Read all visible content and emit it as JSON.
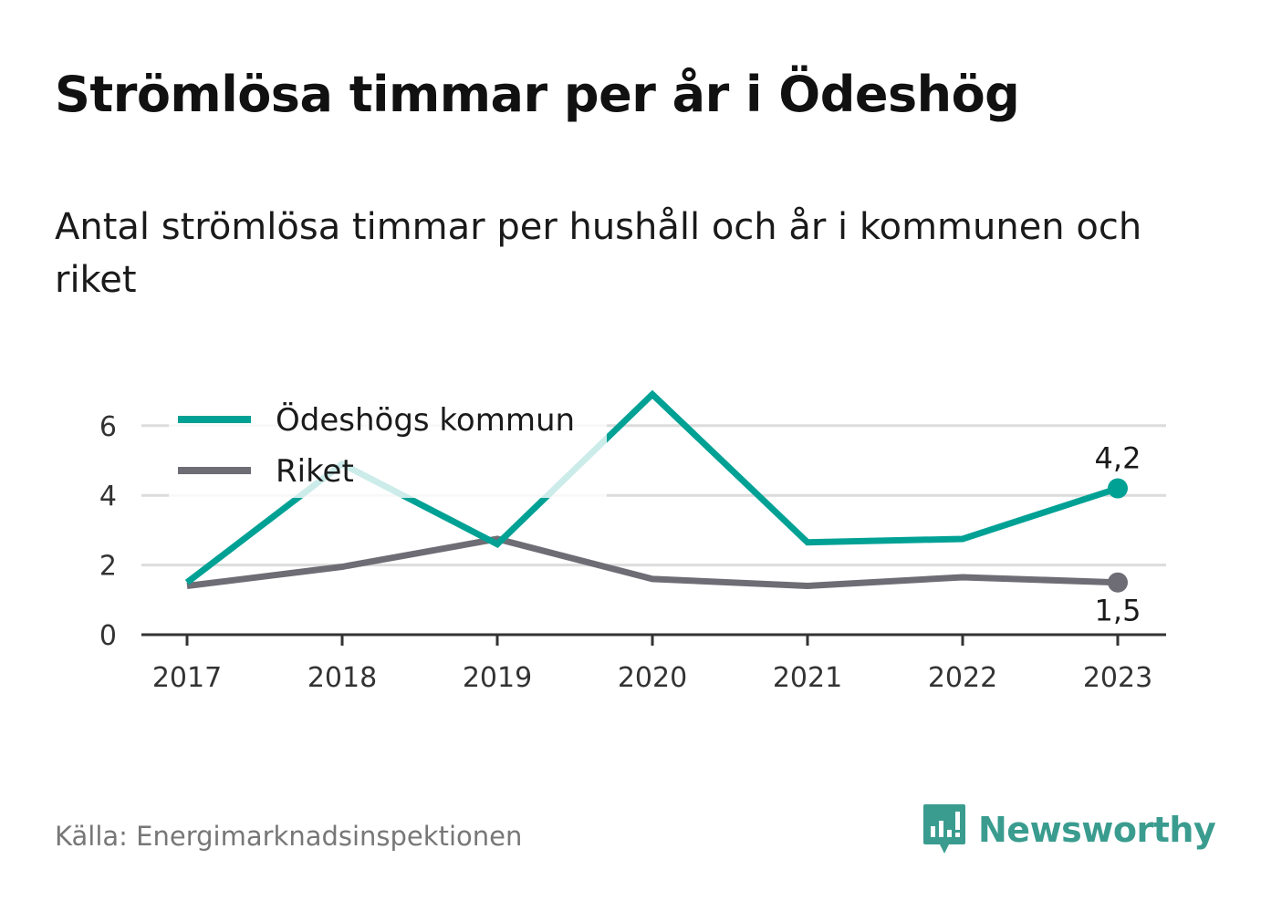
{
  "header": {
    "title": "Strömlösa timmar per år i Ödeshög",
    "subtitle": "Antal strömlösa timmar per hushåll och år i kommunen och riket"
  },
  "footer": {
    "source": "Källa: Energimarknadsinspektionen",
    "brand": "Newsworthy"
  },
  "colors": {
    "kommun": "#00a195",
    "riket": "#6e6d75",
    "grid": "#dcdcdc",
    "axis": "#333333",
    "brand": "#3a9c8f"
  },
  "icons": {
    "brand_logo": "newsworthy-logo-icon"
  },
  "chart_data": {
    "type": "line",
    "title": "Strömlösa timmar per år i Ödeshög",
    "categories": [
      "2017",
      "2018",
      "2019",
      "2020",
      "2021",
      "2022",
      "2023"
    ],
    "ylim": [
      0,
      7
    ],
    "yticks": [
      "0",
      "2",
      "4",
      "6"
    ],
    "grid": true,
    "legend_position": "top-left",
    "series": [
      {
        "name": "Ödeshögs kommun",
        "values": [
          1.5,
          4.9,
          2.6,
          6.9,
          2.65,
          2.75,
          4.2
        ],
        "end_label": "4,2"
      },
      {
        "name": "Riket",
        "values": [
          1.4,
          1.95,
          2.75,
          1.6,
          1.4,
          1.65,
          1.5
        ],
        "end_label": "1,5"
      }
    ]
  }
}
